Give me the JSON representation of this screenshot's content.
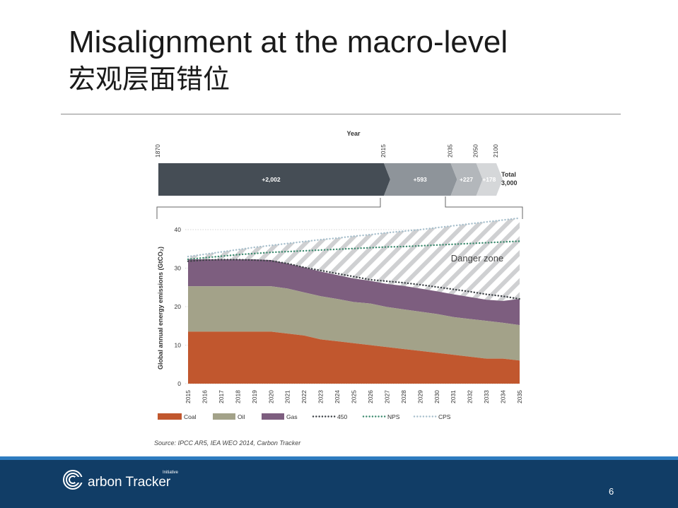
{
  "slide": {
    "title": "Misalignment at the macro-level",
    "subtitle": "宏观层面错位",
    "page_number": "6"
  },
  "footer": {
    "brand": "arbon Tracker",
    "brand_initiative": "Initiative"
  },
  "colors": {
    "coal": "#c1572e",
    "oil": "#a3a289",
    "gas": "#7d5e7f",
    "timeline_dark": "#454d55",
    "timeline_mid": "#8e949a",
    "timeline_light": "#b3b7bb",
    "timeline_lighter": "#d5d7d9",
    "p450": "#3a3f44",
    "nps": "#3c8a6e",
    "cps": "#a7bfcc",
    "footer_bg": "#113d66"
  },
  "chart_data": [
    {
      "type": "bar",
      "title": "Year",
      "years": [
        "1870",
        "2015",
        "2035",
        "2050",
        "2100"
      ],
      "segments": [
        {
          "label": "+2,002",
          "value": 2002
        },
        {
          "label": "+593",
          "value": 593
        },
        {
          "label": "+227",
          "value": 227
        },
        {
          "label": "+178",
          "value": 178
        }
      ],
      "total_label": "Total",
      "total_value": "3,000"
    },
    {
      "type": "area",
      "ylabel": "Global annual energy emissions (GtCO₂)",
      "ylim": [
        0,
        40
      ],
      "yticks": [
        "0",
        "10",
        "20",
        "30",
        "40"
      ],
      "x": [
        "2015",
        "2016",
        "2017",
        "2018",
        "2019",
        "2020",
        "2021",
        "2022",
        "2023",
        "2024",
        "2025",
        "2026",
        "2027",
        "2028",
        "2029",
        "2030",
        "2031",
        "2032",
        "2033",
        "2034",
        "2035"
      ],
      "series": [
        {
          "name": "Coal",
          "values": [
            13.5,
            13.5,
            13.5,
            13.5,
            13.5,
            13.5,
            13.0,
            12.5,
            11.5,
            11.0,
            10.5,
            10.0,
            9.5,
            9.0,
            8.5,
            8.0,
            7.5,
            7.0,
            6.5,
            6.5,
            6.0
          ]
        },
        {
          "name": "Oil",
          "values": [
            11.8,
            11.8,
            11.8,
            11.8,
            11.8,
            11.8,
            11.7,
            11.2,
            11.2,
            11.0,
            10.7,
            10.8,
            10.4,
            10.3,
            10.2,
            10.1,
            9.8,
            9.8,
            9.8,
            9.3,
            9.2
          ]
        },
        {
          "name": "Gas",
          "values": [
            7.0,
            7.0,
            7.0,
            7.0,
            7.0,
            6.8,
            6.5,
            6.5,
            6.4,
            6.2,
            6.1,
            5.9,
            6.0,
            6.1,
            6.0,
            5.9,
            5.9,
            5.7,
            5.5,
            5.7,
            6.8
          ]
        }
      ],
      "lines": [
        {
          "name": "450",
          "values": [
            31.8,
            32.1,
            32.2,
            32.2,
            32.1,
            31.9,
            31.2,
            30.2,
            29.4,
            28.6,
            27.8,
            27.0,
            26.6,
            26.2,
            25.7,
            25.1,
            24.5,
            23.9,
            23.2,
            22.7,
            22.0
          ]
        },
        {
          "name": "NPS",
          "values": [
            32.3,
            32.7,
            33.1,
            33.5,
            33.8,
            34.1,
            34.3,
            34.5,
            34.7,
            34.9,
            35.1,
            35.3,
            35.5,
            35.6,
            35.8,
            36.0,
            36.2,
            36.4,
            36.6,
            36.8,
            37.0
          ]
        },
        {
          "name": "CPS",
          "values": [
            33.0,
            33.6,
            34.2,
            34.8,
            35.4,
            35.9,
            36.4,
            36.9,
            37.4,
            37.8,
            38.3,
            38.7,
            39.2,
            39.6,
            40.0,
            40.5,
            41.0,
            41.5,
            42.0,
            42.5,
            43.0
          ]
        }
      ],
      "annotation": "Danger zone",
      "source": "Source: IPCC AR5, IEA WEO 2014, Carbon Tracker"
    }
  ]
}
